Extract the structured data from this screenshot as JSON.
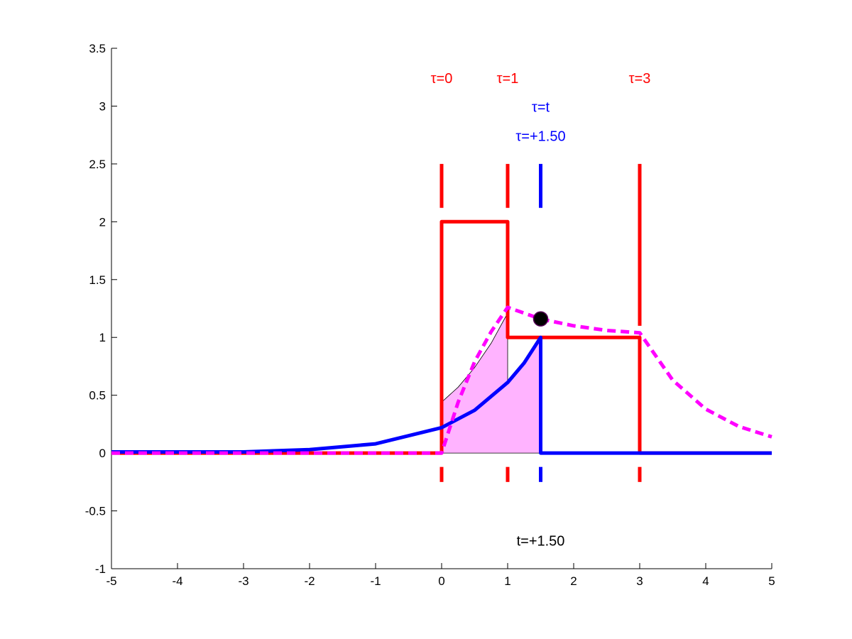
{
  "chart_data": {
    "type": "line",
    "title": "",
    "xlabel": "",
    "ylabel": "",
    "xlim": [
      -5,
      5
    ],
    "ylim": [
      -1,
      3.5
    ],
    "grid": false,
    "legend": "none",
    "x_ticks": [
      -5,
      -4,
      -3,
      -2,
      -1,
      0,
      1,
      2,
      3,
      4,
      5
    ],
    "y_ticks": [
      -1,
      -0.5,
      0,
      0.5,
      1,
      1.5,
      2,
      2.5,
      3,
      3.5
    ],
    "x_tick_labels": [
      "-5",
      "-4",
      "-3",
      "-2",
      "-1",
      "0",
      "1",
      "2",
      "3",
      "4",
      "5"
    ],
    "y_tick_labels": [
      "-1",
      "-0.5",
      "0",
      "0.5",
      "1",
      "1.5",
      "2",
      "2.5",
      "3",
      "3.5"
    ],
    "colors": {
      "red": "#ff0000",
      "blue": "#0000ff",
      "magenta": "#ff00ff",
      "fill": "#ffb3ff",
      "black": "#000000"
    },
    "series": [
      {
        "style": "solid",
        "color": "#ff0000",
        "points": [
          [
            -5,
            0
          ],
          [
            0,
            0
          ],
          [
            0,
            2
          ],
          [
            1,
            2
          ],
          [
            1,
            1
          ],
          [
            3,
            1
          ],
          [
            3,
            0
          ],
          [
            5,
            0
          ]
        ]
      },
      {
        "style": "solid",
        "color": "#0000ff",
        "points": [
          [
            -5,
            0.01
          ],
          [
            -4,
            0.01
          ],
          [
            -3,
            0.01
          ],
          [
            -2,
            0.03
          ],
          [
            -1,
            0.08
          ],
          [
            0,
            0.22
          ],
          [
            0.5,
            0.37
          ],
          [
            1,
            0.61
          ],
          [
            1.25,
            0.78
          ],
          [
            1.5,
            1
          ],
          [
            1.5,
            0
          ],
          [
            5,
            0
          ]
        ]
      },
      {
        "style": "dashed",
        "color": "#ff00ff",
        "points": [
          [
            -5,
            0
          ],
          [
            0,
            0
          ],
          [
            0.25,
            0.44
          ],
          [
            0.5,
            0.79
          ],
          [
            0.75,
            1.05
          ],
          [
            1,
            1.26
          ],
          [
            1.5,
            1.16
          ],
          [
            2,
            1.1
          ],
          [
            2.5,
            1.06
          ],
          [
            3,
            1.04
          ],
          [
            3.5,
            0.63
          ],
          [
            4,
            0.38
          ],
          [
            4.5,
            0.23
          ],
          [
            5,
            0.14
          ]
        ]
      }
    ],
    "shaded_region": {
      "color": "#ffb3ff",
      "x": [
        0,
        0.25,
        0.5,
        0.75,
        1,
        1,
        1.25,
        1.5
      ],
      "y": [
        0.44,
        0.57,
        0.74,
        0.95,
        1.21,
        0.61,
        0.78,
        1
      ]
    },
    "marker": {
      "x": 1.5,
      "y": 1.16,
      "color": "#000000"
    },
    "markers_vertical": [
      {
        "x": 0,
        "color": "#ff0000",
        "label": "τ=0",
        "label_y": 3.2,
        "y_top": [
          2.12,
          2.5
        ],
        "y_bottom": [
          -0.25,
          -0.12
        ]
      },
      {
        "x": 1,
        "color": "#ff0000",
        "label": "τ=1",
        "label_y": 3.2,
        "y_top": [
          2.12,
          2.5
        ],
        "y_bottom": [
          -0.25,
          -0.12
        ]
      },
      {
        "x": 1.5,
        "color": "#0000ff",
        "label": "τ=t",
        "label_y": 2.95,
        "y_top": [
          2.12,
          2.5
        ],
        "y_bottom": [
          -0.25,
          -0.12
        ]
      },
      {
        "x": 3,
        "color": "#ff0000",
        "label": "τ=3",
        "label_y": 3.2,
        "y_top": [
          1.1,
          2.5
        ],
        "y_bottom": [
          -0.25,
          -0.12
        ]
      }
    ],
    "annotations": [
      {
        "text": "τ=+1.50",
        "x": 1.5,
        "y": 2.7,
        "color": "#0000ff"
      },
      {
        "text": "t=+1.50",
        "x": 1.5,
        "y": -0.8,
        "color": "#000000"
      }
    ]
  }
}
